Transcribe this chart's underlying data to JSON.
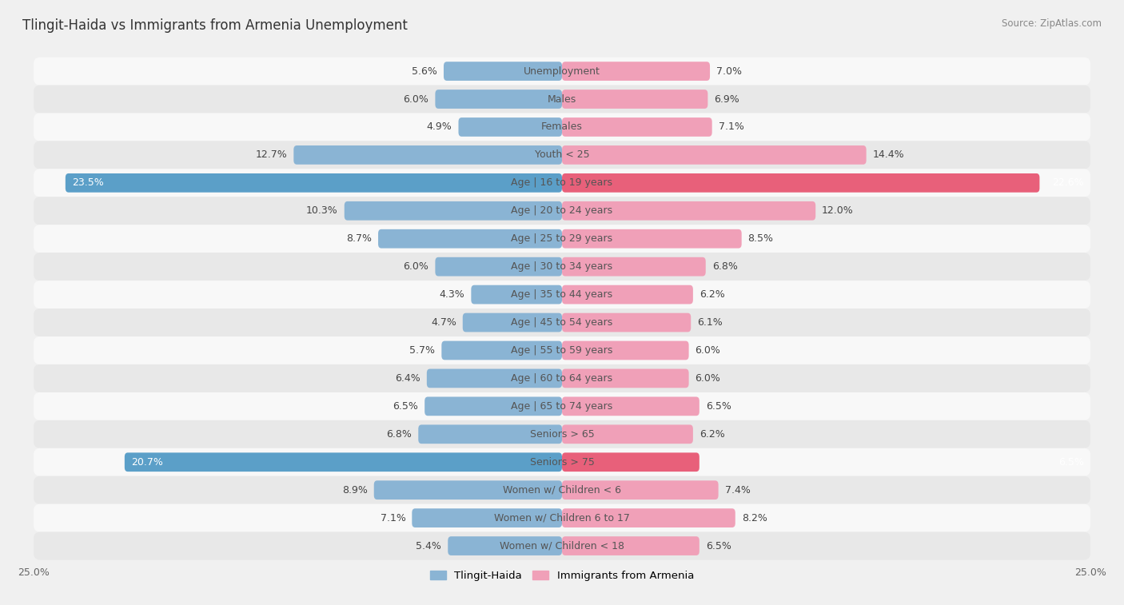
{
  "title": "Tlingit-Haida vs Immigrants from Armenia Unemployment",
  "source": "Source: ZipAtlas.com",
  "categories": [
    "Unemployment",
    "Males",
    "Females",
    "Youth < 25",
    "Age | 16 to 19 years",
    "Age | 20 to 24 years",
    "Age | 25 to 29 years",
    "Age | 30 to 34 years",
    "Age | 35 to 44 years",
    "Age | 45 to 54 years",
    "Age | 55 to 59 years",
    "Age | 60 to 64 years",
    "Age | 65 to 74 years",
    "Seniors > 65",
    "Seniors > 75",
    "Women w/ Children < 6",
    "Women w/ Children 6 to 17",
    "Women w/ Children < 18"
  ],
  "tlingit_values": [
    5.6,
    6.0,
    4.9,
    12.7,
    23.5,
    10.3,
    8.7,
    6.0,
    4.3,
    4.7,
    5.7,
    6.4,
    6.5,
    6.8,
    20.7,
    8.9,
    7.1,
    5.4
  ],
  "armenia_values": [
    7.0,
    6.9,
    7.1,
    14.4,
    22.6,
    12.0,
    8.5,
    6.8,
    6.2,
    6.1,
    6.0,
    6.0,
    6.5,
    6.2,
    6.5,
    7.4,
    8.2,
    6.5
  ],
  "tlingit_color": "#8ab4d4",
  "armenia_color": "#f0a0b8",
  "tlingit_highlight_color": "#5b9fc8",
  "armenia_highlight_color": "#e8607a",
  "highlight_rows": [
    4,
    14
  ],
  "bg_color": "#f0f0f0",
  "row_color_light": "#f8f8f8",
  "row_color_dark": "#e8e8e8",
  "xlim": 25.0,
  "bar_height": 0.68,
  "legend_label_tlingit": "Tlingit-Haida",
  "legend_label_armenia": "Immigrants from Armenia",
  "label_fontsize": 9,
  "category_fontsize": 9,
  "title_fontsize": 12
}
